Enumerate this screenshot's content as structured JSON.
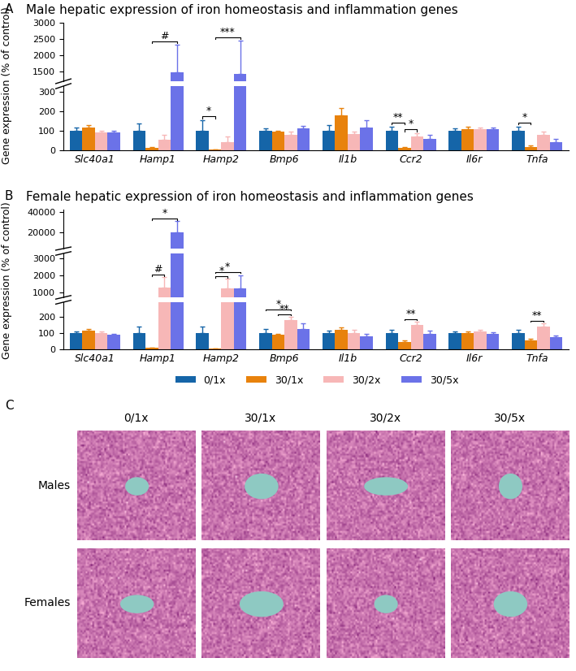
{
  "chart_data": [
    {
      "type": "bar",
      "panel": "A",
      "title": "Male hepatic expression of iron homeostasis and inflammation genes",
      "y_label": "Gene expression (% of control)",
      "categories": [
        "Slc40a1",
        "Hamp1",
        "Hamp2",
        "Bmp6",
        "Il1b",
        "Ccr2",
        "Il6r",
        "Tnfa"
      ],
      "y_segments": [
        {
          "ylim": [
            0,
            330
          ],
          "yticks": [
            0,
            100,
            200,
            300
          ]
        },
        {
          "ylim": [
            1200,
            3000
          ],
          "yticks": [
            1500,
            2000,
            2500,
            3000
          ]
        }
      ],
      "series": [
        {
          "name": "0/1x",
          "color": "#1565a8",
          "values": [
            100,
            100,
            100,
            100,
            100,
            100,
            100,
            100
          ],
          "errors": [
            15,
            38,
            55,
            12,
            30,
            22,
            12,
            22
          ]
        },
        {
          "name": "30/1x",
          "color": "#e8820c",
          "values": [
            118,
            12,
            3,
            95,
            178,
            12,
            110,
            17
          ],
          "errors": [
            10,
            5,
            2,
            5,
            38,
            5,
            10,
            6
          ]
        },
        {
          "name": "30/2x",
          "color": "#f7b7b7",
          "values": [
            92,
            55,
            42,
            80,
            83,
            73,
            107,
            78
          ],
          "errors": [
            10,
            25,
            30,
            15,
            12,
            15,
            12,
            20
          ]
        },
        {
          "name": "30/5x",
          "color": "#6b72e8",
          "values": [
            92,
            1470,
            1420,
            113,
            118,
            60,
            108,
            42
          ],
          "errors": [
            10,
            850,
            1020,
            12,
            38,
            20,
            10,
            15
          ]
        }
      ],
      "significance": [
        {
          "gene": "Hamp1",
          "from": "30/1x",
          "to": "30/5x",
          "label": "#"
        },
        {
          "gene": "Hamp2",
          "from": "0/1x",
          "to": "30/1x",
          "label": "*"
        },
        {
          "gene": "Hamp2",
          "from": "30/1x",
          "to": "30/5x",
          "label": "***"
        },
        {
          "gene": "Ccr2",
          "from": "0/1x",
          "to": "30/1x",
          "label": "**"
        },
        {
          "gene": "Ccr2",
          "from": "30/1x",
          "to": "30/2x",
          "label": "*"
        },
        {
          "gene": "Tnfa",
          "from": "0/1x",
          "to": "30/1x",
          "label": "*"
        }
      ]
    },
    {
      "type": "bar",
      "panel": "B",
      "title": "Female hepatic expression of iron homeostasis and inflammation genes",
      "y_label": "Gene expression (% of control)",
      "legend": "upper center",
      "categories": [
        "Slc40a1",
        "Hamp1",
        "Hamp2",
        "Bmp6",
        "Il1b",
        "Ccr2",
        "Il6r",
        "Tnfa"
      ],
      "y_segments": [
        {
          "ylim": [
            0,
            290
          ],
          "yticks": [
            0,
            100,
            200
          ]
        },
        {
          "ylim": [
            700,
            3300
          ],
          "yticks": [
            1000,
            2000,
            3000
          ]
        },
        {
          "ylim": [
            4000,
            42000
          ],
          "yticks": [
            20000,
            40000
          ]
        }
      ],
      "series": [
        {
          "name": "0/1x",
          "color": "#1565a8",
          "values": [
            100,
            100,
            100,
            100,
            100,
            100,
            100,
            100
          ],
          "errors": [
            10,
            40,
            40,
            25,
            15,
            20,
            10,
            20
          ]
        },
        {
          "name": "30/1x",
          "color": "#e8820c",
          "values": [
            113,
            8,
            5,
            88,
            120,
            45,
            100,
            55
          ],
          "errors": [
            10,
            3,
            2,
            8,
            15,
            8,
            8,
            12
          ]
        },
        {
          "name": "30/2x",
          "color": "#f7b7b7",
          "values": [
            100,
            1280,
            1250,
            180,
            100,
            148,
            108,
            140
          ],
          "errors": [
            8,
            600,
            550,
            20,
            20,
            22,
            12,
            20
          ]
        },
        {
          "name": "30/5x",
          "color": "#6b72e8",
          "values": [
            88,
            19800,
            1250,
            125,
            80,
            95,
            95,
            75
          ],
          "errors": [
            8,
            11000,
            750,
            35,
            15,
            20,
            10,
            12
          ]
        }
      ],
      "significance": [
        {
          "gene": "Hamp1",
          "from": "30/1x",
          "to": "30/2x",
          "label": "#"
        },
        {
          "gene": "Hamp1",
          "from": "30/1x",
          "to": "30/5x",
          "label": "*"
        },
        {
          "gene": "Hamp2",
          "from": "30/1x",
          "to": "30/2x",
          "label": "*"
        },
        {
          "gene": "Hamp2",
          "from": "30/1x",
          "to": "30/5x",
          "label": "*"
        },
        {
          "gene": "Bmp6",
          "from": "30/1x",
          "to": "30/2x",
          "label": "**"
        },
        {
          "gene": "Bmp6",
          "from": "0/1x",
          "to": "30/2x",
          "label": "*"
        },
        {
          "gene": "Ccr2",
          "from": "30/1x",
          "to": "30/2x",
          "label": "**"
        },
        {
          "gene": "Tnfa",
          "from": "30/1x",
          "to": "30/2x",
          "label": "**"
        }
      ]
    }
  ],
  "panel_c": {
    "panel": "C",
    "columns": [
      "0/1x",
      "30/1x",
      "30/2x",
      "30/5x"
    ],
    "rows": [
      "Males",
      "Females"
    ]
  }
}
